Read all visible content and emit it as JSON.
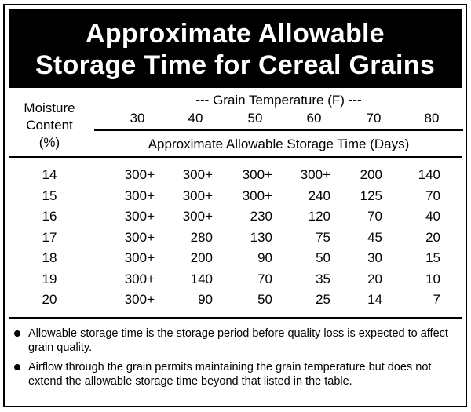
{
  "title": {
    "line1": "Approximate Allowable",
    "line2": "Storage Time for Cereal Grains"
  },
  "chart_data": {
    "type": "table",
    "row_header": [
      "Moisture",
      "Content",
      "(%)"
    ],
    "column_group_label": "--- Grain Temperature (F) ---",
    "columns": [
      "30",
      "40",
      "50",
      "60",
      "70",
      "80"
    ],
    "value_label": "Approximate Allowable Storage Time (Days)",
    "rows": [
      {
        "moisture": "14",
        "values": [
          "300+",
          "300+",
          "300+",
          "300+",
          "200",
          "140"
        ]
      },
      {
        "moisture": "15",
        "values": [
          "300+",
          "300+",
          "300+",
          "240",
          "125",
          "70"
        ]
      },
      {
        "moisture": "16",
        "values": [
          "300+",
          "300+",
          "230",
          "120",
          "70",
          "40"
        ]
      },
      {
        "moisture": "17",
        "values": [
          "300+",
          "280",
          "130",
          "75",
          "45",
          "20"
        ]
      },
      {
        "moisture": "18",
        "values": [
          "300+",
          "200",
          "90",
          "50",
          "30",
          "15"
        ]
      },
      {
        "moisture": "19",
        "values": [
          "300+",
          "140",
          "70",
          "35",
          "20",
          "10"
        ]
      },
      {
        "moisture": "20",
        "values": [
          "300+",
          "90",
          "50",
          "25",
          "14",
          "7"
        ]
      }
    ]
  },
  "notes": [
    "Allowable storage time is the storage period before quality loss is expected to affect grain quality.",
    "Airflow through the grain permits maintaining the grain temperature but does not extend the allowable storage time beyond that listed in the table."
  ]
}
